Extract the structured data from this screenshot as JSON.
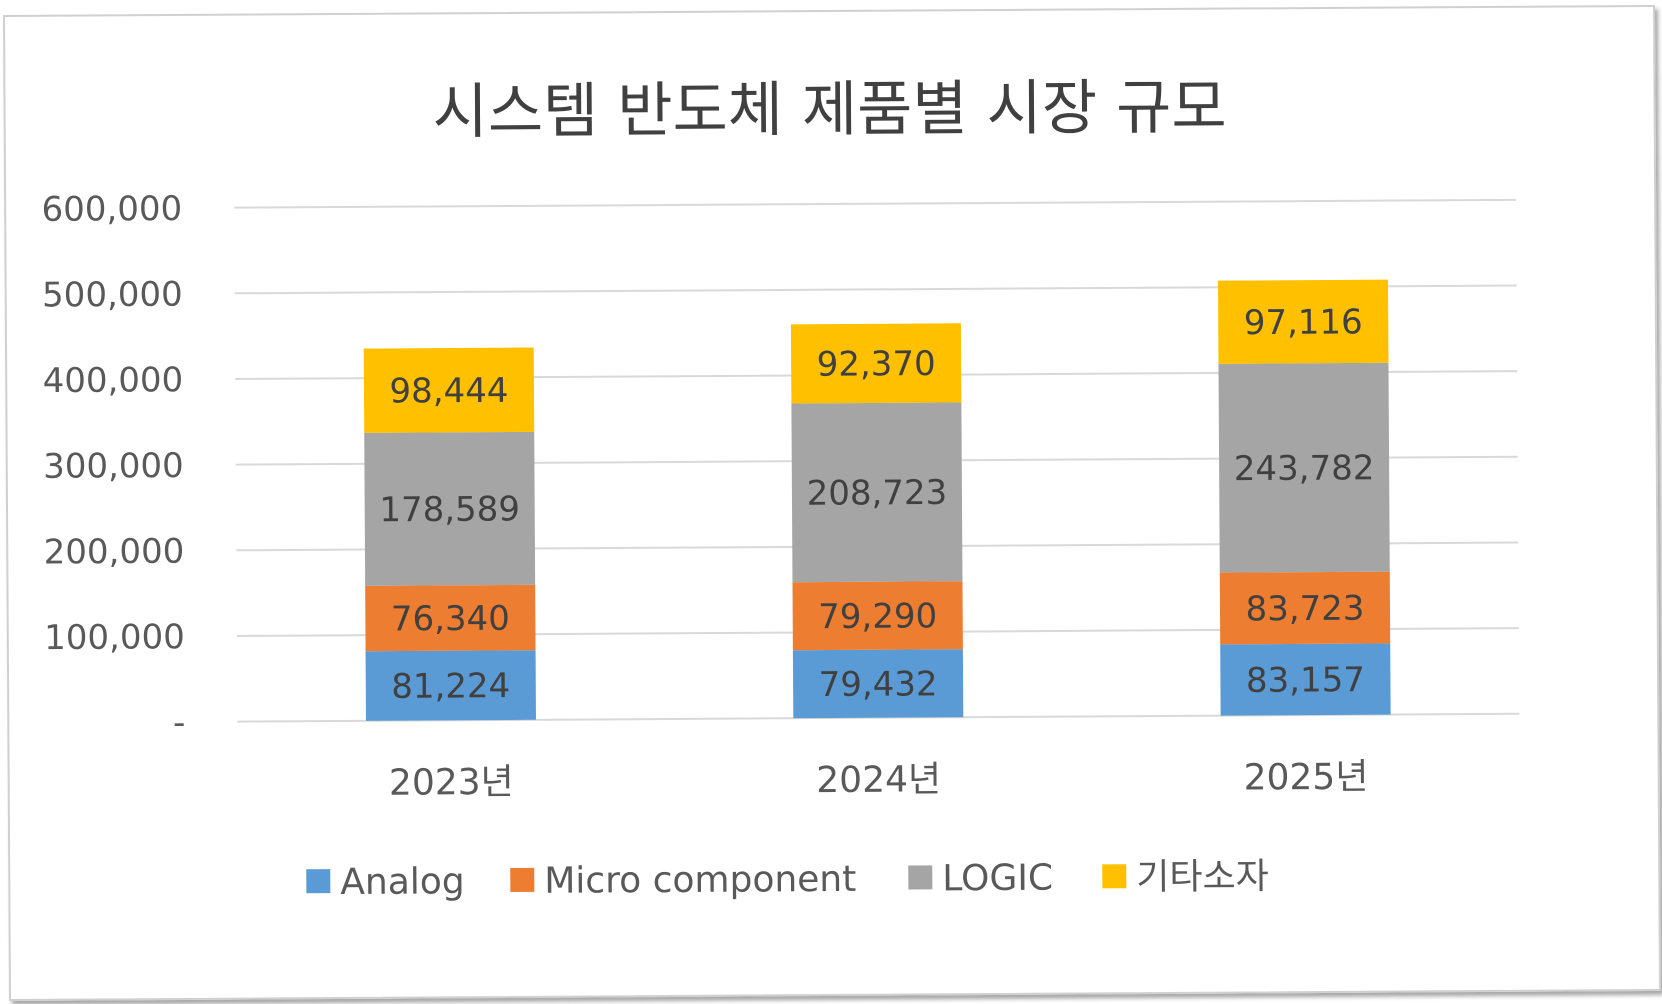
{
  "chart_data": {
    "type": "bar",
    "stacked": true,
    "title": "시스템 반도체 제품별 시장 규모",
    "categories": [
      "2023년",
      "2024년",
      "2025년"
    ],
    "series": [
      {
        "name": "Analog",
        "color": "#5B9BD5",
        "values": [
          81224,
          79432,
          83157
        ],
        "labels": [
          "81,224",
          "79,432",
          "83,157"
        ]
      },
      {
        "name": "Micro component",
        "color": "#ED7D31",
        "values": [
          76340,
          79290,
          83723
        ],
        "labels": [
          "76,340",
          "79,290",
          "83,723"
        ]
      },
      {
        "name": "LOGIC",
        "color": "#A5A5A5",
        "values": [
          178589,
          208723,
          243782
        ],
        "labels": [
          "178,589",
          "208,723",
          "243,782"
        ]
      },
      {
        "name": "기타소자",
        "color": "#FFC000",
        "values": [
          98444,
          92370,
          97116
        ],
        "labels": [
          "98,444",
          "92,370",
          "97,116"
        ]
      }
    ],
    "ylim": [
      0,
      600000
    ],
    "yticks": [
      0,
      100000,
      200000,
      300000,
      400000,
      500000,
      600000
    ],
    "ytick_labels": [
      "-",
      "100,000",
      "200,000",
      "300,000",
      "400,000",
      "500,000",
      "600,000"
    ],
    "xlabel": "",
    "ylabel": "",
    "grid": true,
    "legend_position": "bottom"
  }
}
